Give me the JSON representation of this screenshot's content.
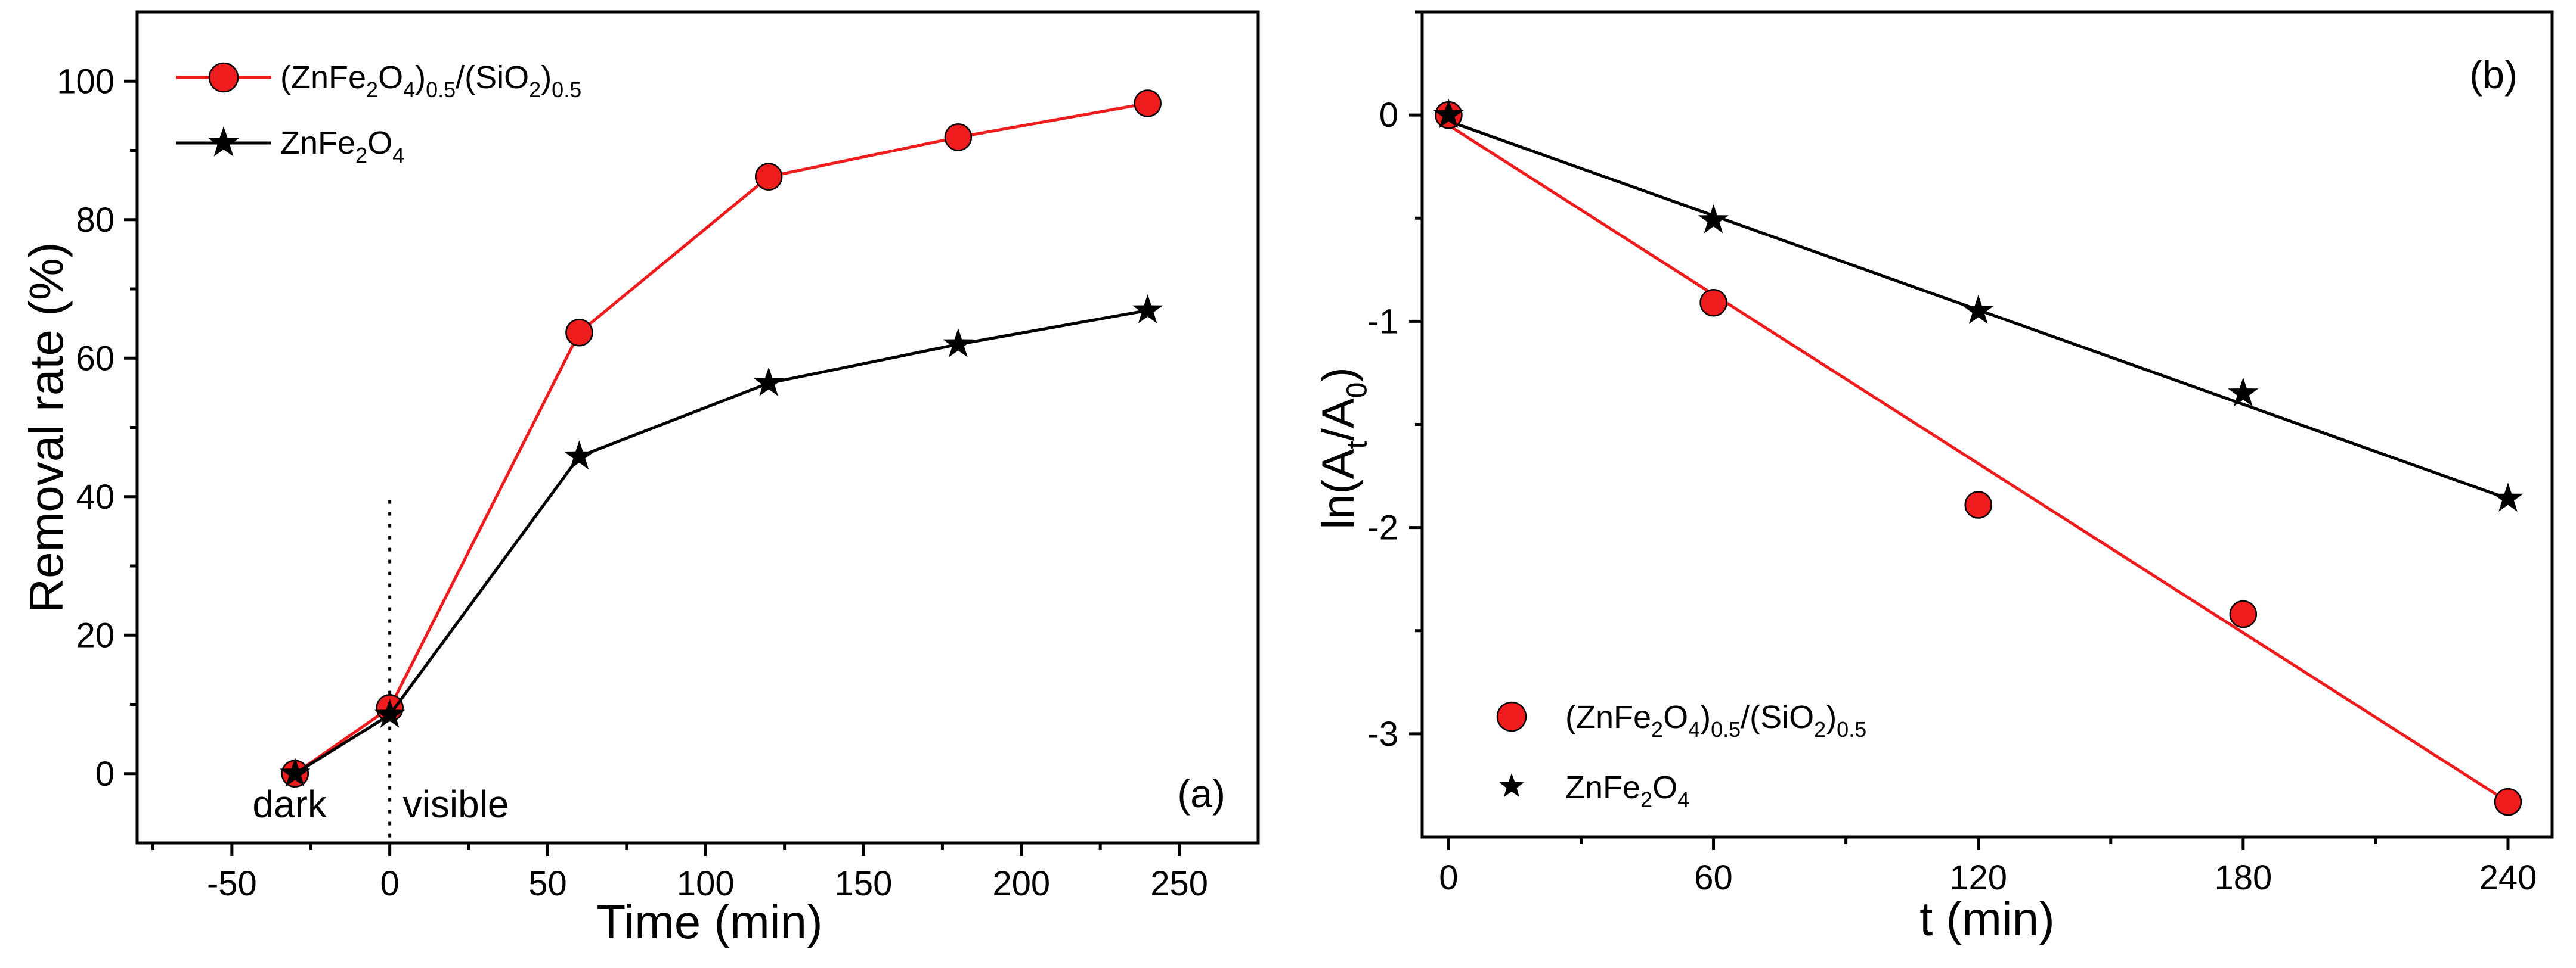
{
  "chart_data": [
    {
      "panel": "a",
      "type": "line",
      "panel_label": "(a)",
      "xlabel": "Time (min)",
      "ylabel": "Removal rate (%)",
      "xlim": [
        -80,
        275
      ],
      "ylim": [
        -10,
        110
      ],
      "xticks": [
        -50,
        0,
        50,
        100,
        150,
        200,
        250
      ],
      "yticks": [
        0,
        20,
        40,
        60,
        80,
        100
      ],
      "annotations": {
        "left": "dark",
        "right": "visible",
        "divider_x": 0
      },
      "legend_position": "top-left",
      "series": [
        {
          "name": "(ZnFe2O4)0.5/(SiO2)0.5",
          "label_parts": [
            "(ZnFe",
            "2",
            "O",
            "4",
            ")",
            "0.5",
            "/(SiO",
            "2",
            ")",
            "0.5"
          ],
          "color": "#ee1c1c",
          "marker": "circle",
          "x": [
            -30,
            0,
            60,
            120,
            180,
            240
          ],
          "y": [
            0,
            9.5,
            63.7,
            86.2,
            91.9,
            96.8
          ]
        },
        {
          "name": "ZnFe2O4",
          "label_parts": [
            "ZnFe",
            "2",
            "O",
            "4"
          ],
          "color": "#000000",
          "marker": "star",
          "x": [
            -30,
            0,
            60,
            120,
            180,
            240
          ],
          "y": [
            0,
            8.5,
            45.8,
            56.4,
            62.0,
            66.9
          ]
        }
      ]
    },
    {
      "panel": "b",
      "type": "scatter",
      "panel_label": "(b)",
      "xlabel": "t  (min)",
      "ylabel": "ln(At/A0)",
      "ylabel_parts": [
        "ln(A",
        "t",
        "/A",
        "0",
        ")"
      ],
      "xlim": [
        -6,
        250
      ],
      "ylim": [
        -3.5,
        0.5
      ],
      "xticks": [
        0,
        60,
        120,
        180,
        240
      ],
      "yticks": [
        0,
        -1,
        -2,
        -3
      ],
      "legend_position": "bottom-left",
      "series": [
        {
          "name": "(ZnFe2O4)0.5/(SiO2)0.5",
          "label_parts": [
            "(ZnFe",
            "2",
            "O",
            "4",
            ")",
            "0.5",
            "/(SiO",
            "2",
            ")",
            "0.5"
          ],
          "color": "#ee1c1c",
          "marker": "circle",
          "x": [
            0,
            60,
            120,
            180,
            240
          ],
          "y": [
            0,
            -0.91,
            -1.89,
            -2.42,
            -3.33
          ],
          "fit": {
            "x": [
              0,
              240
            ],
            "y": [
              -0.05,
              -3.33
            ]
          }
        },
        {
          "name": "ZnFe2O4",
          "label_parts": [
            "ZnFe",
            "2",
            "O",
            "4"
          ],
          "color": "#000000",
          "marker": "star",
          "x": [
            0,
            60,
            120,
            180,
            240
          ],
          "y": [
            0,
            -0.51,
            -0.95,
            -1.35,
            -1.86
          ],
          "fit": {
            "x": [
              0,
              240
            ],
            "y": [
              -0.03,
              -1.86
            ]
          }
        }
      ]
    }
  ]
}
